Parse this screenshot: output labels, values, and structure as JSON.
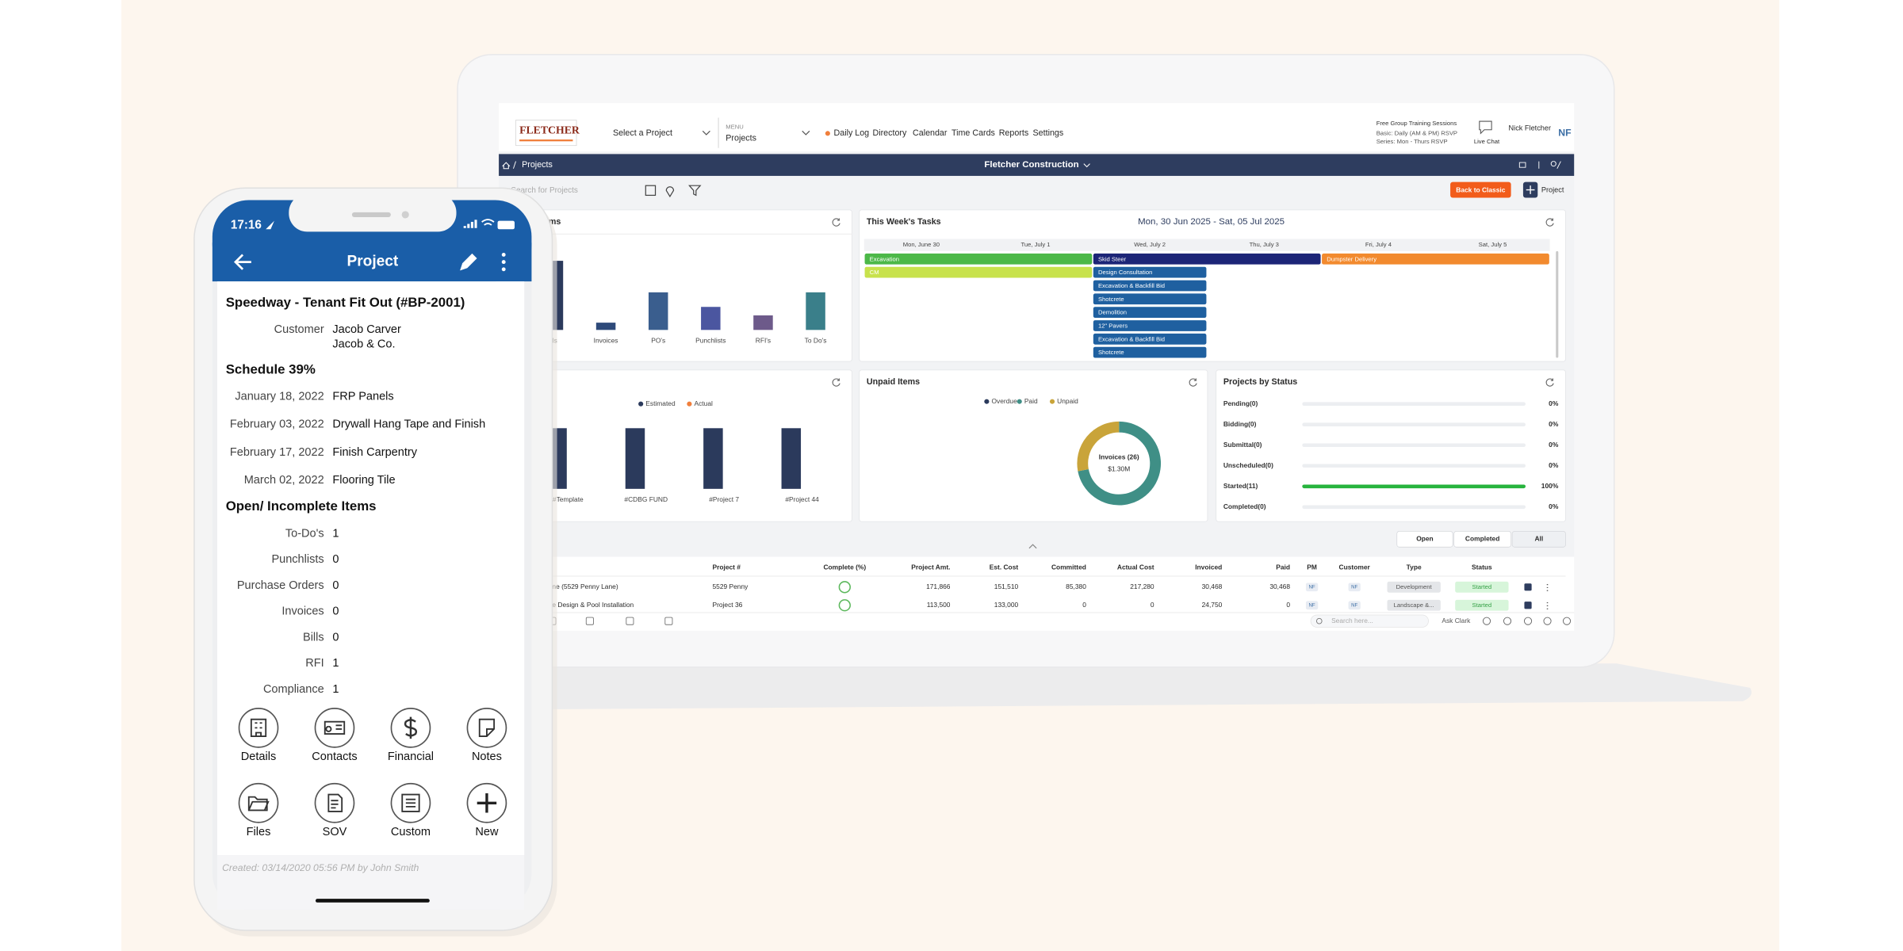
{
  "phone": {
    "status_time": "17:16",
    "header": "Project",
    "project_title": "Speedway - Tenant Fit Out (#BP-2001)",
    "customer": {
      "label": "Customer",
      "lines": [
        "Jacob Carver",
        "Jacob & Co."
      ]
    },
    "schedule": {
      "title": "Schedule 39%",
      "items": [
        {
          "date": "January 18, 2022",
          "task": "FRP Panels"
        },
        {
          "date": "February 03, 2022",
          "task": "Drywall Hang Tape and Finish"
        },
        {
          "date": "February 17, 2022",
          "task": "Finish Carpentry"
        },
        {
          "date": "March 02, 2022",
          "task": "Flooring Tile"
        }
      ]
    },
    "open_items": {
      "title": "Open/ Incomplete Items",
      "rows": [
        {
          "label": "To-Do's",
          "value": 1
        },
        {
          "label": "Punchlists",
          "value": 0
        },
        {
          "label": "Purchase Orders",
          "value": 0
        },
        {
          "label": "Invoices",
          "value": 0
        },
        {
          "label": "Bills",
          "value": 0
        },
        {
          "label": "RFI",
          "value": 1
        },
        {
          "label": "Compliance",
          "value": 1
        }
      ]
    },
    "actions": [
      "Details",
      "Contacts",
      "Financial",
      "Notes",
      "Files",
      "SOV",
      "Custom",
      "New"
    ],
    "footer": "Created: 03/14/2020 05:56 PM by John Smith"
  },
  "dashboard": {
    "nav": {
      "logo": "FLETCHER",
      "project_select": "Select a Project",
      "menu_label": "MENU",
      "menu_value": "Projects",
      "links": [
        "Daily Log",
        "Directory",
        "Calendar",
        "Time Cards",
        "Reports",
        "Settings"
      ],
      "training": [
        "Free Group Training Sessions",
        "Basic: Daily (AM & PM) RSVP",
        "Series: Mon - Thurs RSVP"
      ],
      "live_chat": "Live Chat",
      "user_name": "Nick Fletcher",
      "initials": "NF"
    },
    "breadcrumb": "Projects",
    "company": "Fletcher Construction",
    "search_placeholder": "Search for Projects",
    "back_to_classic": "Back to Classic",
    "new_project": "Project",
    "items_chart": {
      "type": "bar",
      "title": "ms",
      "categories": [
        "ills",
        "Invoices",
        "PO's",
        "Punchlists",
        "RFI's",
        "To Do's"
      ],
      "values": [
        57,
        6,
        31,
        19,
        12,
        31
      ],
      "colors": [
        "#2b3a5c",
        "#2e4a7a",
        "#3a5e8e",
        "#4b56a0",
        "#6d5a8a",
        "#3a7f8a"
      ]
    },
    "tasks": {
      "title": "This Week's Tasks",
      "range": "Mon, 30 Jun 2025 - Sat, 05 Jul 2025",
      "days": [
        "Mon, June 30",
        "Tue, July 1",
        "Wed, July 2",
        "Thu, July 3",
        "Fri, July 4",
        "Sat, July 5"
      ],
      "items": [
        {
          "name": "Excavation",
          "from": 0,
          "to": 1,
          "color": "#4cb848"
        },
        {
          "name": "Skid Steer",
          "from": 2,
          "to": 3,
          "color": "#1c2577"
        },
        {
          "name": "Dumpster Delivery",
          "from": 4,
          "to": 5,
          "color": "#f28a2e"
        },
        {
          "name": "CM",
          "from": 0,
          "to": 1,
          "color": "#c8e24c"
        },
        {
          "name": "Design Consultation",
          "from": 2,
          "to": 2,
          "color": "#1f60a0"
        },
        {
          "name": "Excavation & Backfill Bid",
          "from": 2,
          "to": 2,
          "color": "#1f60a0"
        },
        {
          "name": "Shotcrete",
          "from": 2,
          "to": 2,
          "color": "#1f60a0"
        },
        {
          "name": "Demolition",
          "from": 2,
          "to": 2,
          "color": "#1f60a0"
        },
        {
          "name": "12\" Pavers",
          "from": 2,
          "to": 2,
          "color": "#1f60a0"
        },
        {
          "name": "Excavation & Backfill Bid",
          "from": 2,
          "to": 2,
          "color": "#1f60a0"
        },
        {
          "name": "Shotcrete",
          "from": 2,
          "to": 2,
          "color": "#1f60a0"
        }
      ]
    },
    "cost_chart": {
      "type": "bar",
      "categories": [
        "#Template",
        "#CDBG FUND",
        "#Project 7",
        "#Project 44"
      ],
      "series": [
        {
          "name": "Estimated",
          "color": "#2b3a5c",
          "values": [
            50,
            50,
            50,
            50
          ]
        },
        {
          "name": "Actual",
          "color": "#f07f3c",
          "values": [
            0,
            0,
            0,
            0
          ]
        }
      ]
    },
    "unpaid": {
      "type": "pie",
      "title": "Unpaid Items",
      "series": [
        {
          "name": "Overdue",
          "color": "#2b3a5c",
          "value": 0
        },
        {
          "name": "Paid",
          "color": "#3f8f86",
          "value": 72
        },
        {
          "name": "Unpaid",
          "color": "#c9a43a",
          "value": 28
        }
      ],
      "center_label": "Invoices (26)",
      "center_value": "$1.30M"
    },
    "status": {
      "title": "Projects by Status",
      "labels": [
        "Pending(0)",
        "Bidding(0)",
        "Submittal(0)",
        "Unscheduled(0)",
        "Started(11)",
        "Completed(0)"
      ],
      "values": [
        0,
        0,
        0,
        0,
        100,
        0
      ],
      "value_labels": [
        "0%",
        "0%",
        "0%",
        "0%",
        "100%",
        "0%"
      ],
      "color": "#27b43d"
    },
    "filters": [
      "Open",
      "Completed",
      "All"
    ],
    "table": {
      "columns": [
        "Project #",
        "Complete (%)",
        "Project Amt.",
        "Est. Cost",
        "Committed",
        "Actual Cost",
        "Invoiced",
        "Paid",
        "PM",
        "Customer",
        "Type",
        "Status"
      ],
      "rows": [
        {
          "name": "ne (5529 Penny Lane)",
          "cells": [
            "5529 Penny",
            null,
            "171,866",
            "151,510",
            "85,380",
            "217,280",
            "30,468",
            "30,468",
            "NF",
            "NF",
            "Development",
            "Started"
          ]
        },
        {
          "name": "e Design & Pool Installation",
          "cells": [
            "Project 36",
            null,
            "113,500",
            "133,000",
            "0",
            "0",
            "24,750",
            "0",
            "NF",
            "NF",
            "Landscape &...",
            "Started"
          ]
        }
      ]
    },
    "footer_bar": {
      "search": "Search here...",
      "assistant": "Ask Clark"
    }
  }
}
